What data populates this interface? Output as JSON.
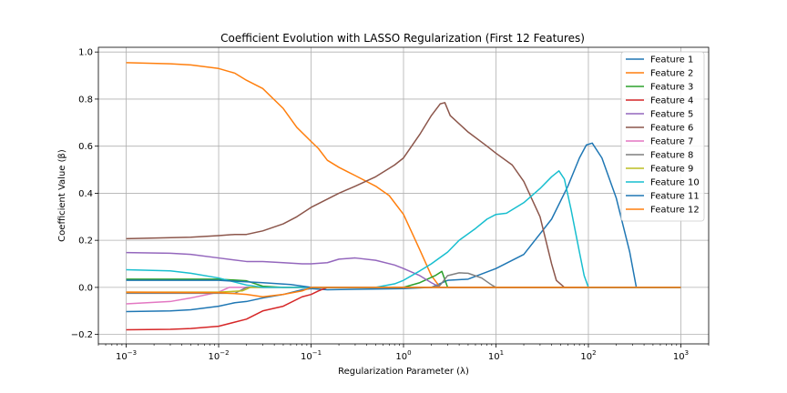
{
  "chart_data": {
    "type": "line",
    "title": "Coefficient Evolution with LASSO Regularization (First 12 Features)",
    "xlabel": "Regularization Parameter (λ)",
    "ylabel": "Coefficient Value (β)",
    "xscale": "log",
    "xlim": [
      0.0005,
      2000
    ],
    "ylim": [
      -0.24,
      1.02
    ],
    "x_ticks": [
      0.001,
      0.01,
      0.1,
      1,
      10,
      100,
      1000
    ],
    "x_tick_labels": [
      {
        "base": "10",
        "exp": "−3"
      },
      {
        "base": "10",
        "exp": "−2"
      },
      {
        "base": "10",
        "exp": "−1"
      },
      {
        "base": "10",
        "exp": "0"
      },
      {
        "base": "10",
        "exp": "1"
      },
      {
        "base": "10",
        "exp": "2"
      },
      {
        "base": "10",
        "exp": "3"
      }
    ],
    "y_ticks": [
      -0.2,
      0.0,
      0.2,
      0.4,
      0.6,
      0.8,
      1.0
    ],
    "y_tick_labels": [
      "−0.2",
      "0.0",
      "0.2",
      "0.4",
      "0.6",
      "0.8",
      "1.0"
    ],
    "grid": true,
    "legend_position": "top-right",
    "series": [
      {
        "name": "Feature 1",
        "color": "#1f77b4",
        "points": [
          [
            0.001,
            -0.103
          ],
          [
            0.003,
            -0.1
          ],
          [
            0.005,
            -0.095
          ],
          [
            0.01,
            -0.08
          ],
          [
            0.015,
            -0.065
          ],
          [
            0.02,
            -0.06
          ],
          [
            0.03,
            -0.045
          ],
          [
            0.05,
            -0.03
          ],
          [
            0.08,
            -0.01
          ],
          [
            0.1,
            -0.005
          ],
          [
            0.15,
            -0.01
          ],
          [
            1,
            -0.005
          ],
          [
            2,
            0
          ],
          [
            3,
            0.03
          ],
          [
            5,
            0.035
          ],
          [
            10,
            0.08
          ],
          [
            20,
            0.14
          ],
          [
            40,
            0.29
          ],
          [
            60,
            0.43
          ],
          [
            80,
            0.55
          ],
          [
            95,
            0.605
          ],
          [
            110,
            0.613
          ],
          [
            140,
            0.55
          ],
          [
            200,
            0.38
          ],
          [
            280,
            0.15
          ],
          [
            330,
            0
          ],
          [
            1000,
            0
          ]
        ]
      },
      {
        "name": "Feature 2",
        "color": "#ff7f0e",
        "points": [
          [
            0.001,
            0.955
          ],
          [
            0.003,
            0.95
          ],
          [
            0.005,
            0.945
          ],
          [
            0.01,
            0.93
          ],
          [
            0.015,
            0.91
          ],
          [
            0.02,
            0.88
          ],
          [
            0.03,
            0.845
          ],
          [
            0.05,
            0.76
          ],
          [
            0.07,
            0.68
          ],
          [
            0.1,
            0.62
          ],
          [
            0.12,
            0.59
          ],
          [
            0.15,
            0.54
          ],
          [
            0.2,
            0.51
          ],
          [
            0.3,
            0.475
          ],
          [
            0.5,
            0.43
          ],
          [
            0.7,
            0.39
          ],
          [
            1,
            0.31
          ],
          [
            1.5,
            0.16
          ],
          [
            2,
            0.05
          ],
          [
            2.5,
            0
          ],
          [
            1000,
            0
          ]
        ]
      },
      {
        "name": "Feature 3",
        "color": "#2ca02c",
        "points": [
          [
            0.001,
            0.035
          ],
          [
            0.01,
            0.035
          ],
          [
            0.02,
            0.028
          ],
          [
            0.03,
            0.005
          ],
          [
            0.05,
            0
          ],
          [
            1,
            0
          ],
          [
            1.5,
            0.02
          ],
          [
            2.2,
            0.05
          ],
          [
            2.6,
            0.068
          ],
          [
            3,
            0
          ],
          [
            1000,
            0
          ]
        ]
      },
      {
        "name": "Feature 4",
        "color": "#d62728",
        "points": [
          [
            0.001,
            -0.18
          ],
          [
            0.003,
            -0.178
          ],
          [
            0.005,
            -0.175
          ],
          [
            0.01,
            -0.165
          ],
          [
            0.02,
            -0.135
          ],
          [
            0.03,
            -0.1
          ],
          [
            0.05,
            -0.08
          ],
          [
            0.08,
            -0.04
          ],
          [
            0.1,
            -0.03
          ],
          [
            0.12,
            -0.015
          ],
          [
            0.15,
            0
          ],
          [
            1000,
            0
          ]
        ]
      },
      {
        "name": "Feature 5",
        "color": "#9467bd",
        "points": [
          [
            0.001,
            0.148
          ],
          [
            0.003,
            0.145
          ],
          [
            0.005,
            0.14
          ],
          [
            0.01,
            0.125
          ],
          [
            0.02,
            0.11
          ],
          [
            0.03,
            0.11
          ],
          [
            0.05,
            0.105
          ],
          [
            0.08,
            0.1
          ],
          [
            0.1,
            0.1
          ],
          [
            0.15,
            0.105
          ],
          [
            0.2,
            0.12
          ],
          [
            0.3,
            0.125
          ],
          [
            0.5,
            0.115
          ],
          [
            0.8,
            0.095
          ],
          [
            1,
            0.08
          ],
          [
            1.5,
            0.05
          ],
          [
            2,
            0.02
          ],
          [
            2.5,
            0
          ],
          [
            1000,
            0
          ]
        ]
      },
      {
        "name": "Feature 6",
        "color": "#8c564b",
        "points": [
          [
            0.001,
            0.207
          ],
          [
            0.005,
            0.213
          ],
          [
            0.01,
            0.22
          ],
          [
            0.015,
            0.225
          ],
          [
            0.02,
            0.225
          ],
          [
            0.03,
            0.24
          ],
          [
            0.05,
            0.27
          ],
          [
            0.07,
            0.3
          ],
          [
            0.1,
            0.34
          ],
          [
            0.2,
            0.4
          ],
          [
            0.3,
            0.43
          ],
          [
            0.5,
            0.47
          ],
          [
            0.8,
            0.52
          ],
          [
            1,
            0.55
          ],
          [
            1.5,
            0.65
          ],
          [
            2,
            0.73
          ],
          [
            2.5,
            0.78
          ],
          [
            2.8,
            0.785
          ],
          [
            3.2,
            0.73
          ],
          [
            5,
            0.66
          ],
          [
            8,
            0.6
          ],
          [
            10,
            0.57
          ],
          [
            15,
            0.52
          ],
          [
            20,
            0.45
          ],
          [
            30,
            0.3
          ],
          [
            40,
            0.1
          ],
          [
            45,
            0.03
          ],
          [
            55,
            0
          ],
          [
            1000,
            0
          ]
        ]
      },
      {
        "name": "Feature 7",
        "color": "#e377c2",
        "points": [
          [
            0.001,
            -0.07
          ],
          [
            0.003,
            -0.06
          ],
          [
            0.005,
            -0.045
          ],
          [
            0.01,
            -0.02
          ],
          [
            0.013,
            0
          ],
          [
            0.017,
            0
          ],
          [
            1000,
            0
          ]
        ]
      },
      {
        "name": "Feature 8",
        "color": "#7f7f7f",
        "points": [
          [
            0.001,
            -0.025
          ],
          [
            0.01,
            -0.025
          ],
          [
            0.015,
            -0.025
          ],
          [
            0.02,
            0
          ],
          [
            1,
            0
          ],
          [
            2,
            0
          ],
          [
            2.5,
            0.01
          ],
          [
            3,
            0.05
          ],
          [
            4,
            0.062
          ],
          [
            5,
            0.06
          ],
          [
            7,
            0.04
          ],
          [
            9,
            0.01
          ],
          [
            10,
            0
          ],
          [
            1000,
            0
          ]
        ]
      },
      {
        "name": "Feature 9",
        "color": "#bcbd22",
        "points": [
          [
            0.001,
            -0.02
          ],
          [
            0.01,
            -0.02
          ],
          [
            0.018,
            -0.015
          ],
          [
            0.022,
            0
          ],
          [
            1000,
            0
          ]
        ]
      },
      {
        "name": "Feature 10",
        "color": "#17becf",
        "points": [
          [
            0.001,
            0.075
          ],
          [
            0.003,
            0.07
          ],
          [
            0.005,
            0.06
          ],
          [
            0.01,
            0.04
          ],
          [
            0.02,
            0.01
          ],
          [
            0.03,
            0
          ],
          [
            0.5,
            0
          ],
          [
            0.8,
            0.015
          ],
          [
            1,
            0.03
          ],
          [
            1.5,
            0.07
          ],
          [
            2,
            0.1
          ],
          [
            3,
            0.15
          ],
          [
            4,
            0.2
          ],
          [
            6,
            0.25
          ],
          [
            8,
            0.29
          ],
          [
            10,
            0.31
          ],
          [
            13,
            0.315
          ],
          [
            20,
            0.36
          ],
          [
            30,
            0.42
          ],
          [
            40,
            0.47
          ],
          [
            48,
            0.495
          ],
          [
            55,
            0.46
          ],
          [
            65,
            0.33
          ],
          [
            80,
            0.15
          ],
          [
            90,
            0.05
          ],
          [
            100,
            0
          ],
          [
            1000,
            0
          ]
        ]
      },
      {
        "name": "Feature 11",
        "color": "#1f77b4",
        "points": [
          [
            0.001,
            0.03
          ],
          [
            0.01,
            0.03
          ],
          [
            0.03,
            0.02
          ],
          [
            0.06,
            0.012
          ],
          [
            0.1,
            0
          ],
          [
            1000,
            0
          ]
        ]
      },
      {
        "name": "Feature 12",
        "color": "#ff7f0e",
        "points": [
          [
            0.001,
            -0.02
          ],
          [
            0.01,
            -0.022
          ],
          [
            0.02,
            -0.03
          ],
          [
            0.03,
            -0.04
          ],
          [
            0.05,
            -0.03
          ],
          [
            0.08,
            -0.015
          ],
          [
            0.1,
            0
          ],
          [
            1000,
            0
          ]
        ]
      }
    ]
  }
}
